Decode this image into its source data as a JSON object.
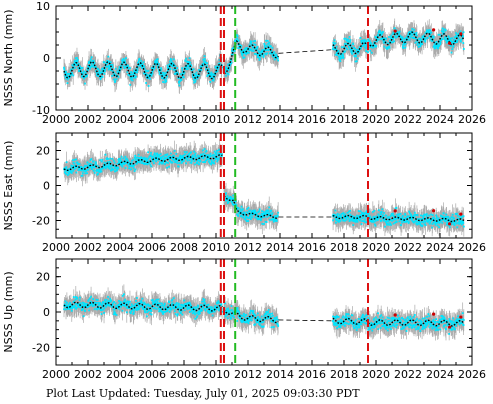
{
  "footer": "Plot Last Updated:   Tuesday, July 01, 2025 09:03:30 PDT",
  "colors": {
    "errorbar": "#aaaaaa",
    "data": "#00e5ff",
    "model": "#000000",
    "event_red": "#dd1111",
    "event_green": "#22bb22",
    "outlier": "#cc0000"
  },
  "chart_data": [
    {
      "type": "scatter",
      "title": "",
      "ylabel": "NSSS North (mm)",
      "xlim": [
        2000,
        2026
      ],
      "ylim": [
        -10,
        10
      ],
      "xticks": [
        2000,
        2002,
        2004,
        2006,
        2008,
        2010,
        2012,
        2014,
        2016,
        2018,
        2020,
        2022,
        2024,
        2026
      ],
      "yticks": [
        -10,
        0,
        10
      ],
      "events_red": [
        2010.3,
        2010.5,
        2019.5
      ],
      "events_green": [
        2011.2
      ],
      "gap": [
        2013.9,
        2017.3
      ],
      "series": [
        {
          "segment": "2000.5-2010.4",
          "model": [
            [
              2000.5,
              -2.5
            ],
            [
              2002.0,
              -2.1
            ],
            [
              2004.0,
              -2.2
            ],
            [
              2006.0,
              -2.4
            ],
            [
              2008.0,
              -2.5
            ],
            [
              2010.4,
              -2.6
            ]
          ],
          "seasonal_amplitude_mm": 1.4
        },
        {
          "segment": "2010.5-2013.9",
          "model": [
            [
              2010.5,
              -3.0
            ],
            [
              2011.0,
              0.5
            ],
            [
              2011.3,
              2.4
            ],
            [
              2012.0,
              1.7
            ],
            [
              2013.9,
              0.9
            ]
          ],
          "seasonal_amplitude_mm": 0.9
        },
        {
          "segment": "2017.3-2025.5",
          "model": [
            [
              2017.3,
              1.6
            ],
            [
              2019.4,
              2.0
            ],
            [
              2019.6,
              3.2
            ],
            [
              2022.0,
              4.0
            ],
            [
              2025.5,
              3.4
            ]
          ],
          "seasonal_amplitude_mm": 1.0
        }
      ]
    },
    {
      "type": "scatter",
      "title": "",
      "ylabel": "NSSS East (mm)",
      "xlim": [
        2000,
        2026
      ],
      "ylim": [
        -30,
        30
      ],
      "xticks": [
        2000,
        2002,
        2004,
        2006,
        2008,
        2010,
        2012,
        2014,
        2016,
        2018,
        2020,
        2022,
        2024,
        2026
      ],
      "yticks": [
        -20,
        0,
        20
      ],
      "events_red": [
        2010.3,
        2010.5,
        2019.5
      ],
      "events_green": [
        2011.2
      ],
      "gap": [
        2013.9,
        2017.3
      ],
      "series": [
        {
          "segment": "2000.5-2010.4",
          "model": [
            [
              2000.5,
              9.5
            ],
            [
              2002.0,
              10.5
            ],
            [
              2004.0,
              12.5
            ],
            [
              2006.0,
              14.5
            ],
            [
              2008.0,
              15.5
            ],
            [
              2010.4,
              16.5
            ]
          ],
          "seasonal_amplitude_mm": 1.0
        },
        {
          "segment": "2010.5-2013.9",
          "model": [
            [
              2010.5,
              -6.0
            ],
            [
              2011.1,
              -9.0
            ],
            [
              2011.3,
              -15.0
            ],
            [
              2012.0,
              -16.5
            ],
            [
              2013.9,
              -18.0
            ]
          ],
          "seasonal_amplitude_mm": 0.8
        },
        {
          "segment": "2017.3-2025.5",
          "model": [
            [
              2017.3,
              -18.0
            ],
            [
              2019.4,
              -18.0
            ],
            [
              2019.6,
              -18.5
            ],
            [
              2022.0,
              -19.0
            ],
            [
              2025.5,
              -20.0
            ]
          ],
          "seasonal_amplitude_mm": 0.8
        }
      ]
    },
    {
      "type": "scatter",
      "title": "",
      "ylabel": "NSSS Up (mm)",
      "xlim": [
        2000,
        2026
      ],
      "ylim": [
        -30,
        30
      ],
      "xticks": [
        2000,
        2002,
        2004,
        2006,
        2008,
        2010,
        2012,
        2014,
        2016,
        2018,
        2020,
        2022,
        2024,
        2026
      ],
      "yticks": [
        -20,
        0,
        20
      ],
      "events_red": [
        2010.3,
        2010.5,
        2019.5
      ],
      "events_green": [
        2011.2
      ],
      "gap": [
        2013.9,
        2017.3
      ],
      "series": [
        {
          "segment": "2000.5-2010.4",
          "model": [
            [
              2000.5,
              4.0
            ],
            [
              2002.0,
              4.0
            ],
            [
              2004.0,
              3.5
            ],
            [
              2006.0,
              3.0
            ],
            [
              2008.0,
              2.5
            ],
            [
              2010.4,
              2.0
            ]
          ],
          "seasonal_amplitude_mm": 1.5
        },
        {
          "segment": "2010.5-2013.9",
          "model": [
            [
              2010.5,
              1.5
            ],
            [
              2011.3,
              -2.0
            ],
            [
              2012.0,
              -3.5
            ],
            [
              2013.9,
              -4.5
            ]
          ],
          "seasonal_amplitude_mm": 1.5
        },
        {
          "segment": "2017.3-2025.5",
          "model": [
            [
              2017.3,
              -5.0
            ],
            [
              2019.4,
              -5.5
            ],
            [
              2019.6,
              -6.0
            ],
            [
              2022.0,
              -6.0
            ],
            [
              2025.5,
              -6.5
            ]
          ],
          "seasonal_amplitude_mm": 1.5
        }
      ]
    }
  ]
}
